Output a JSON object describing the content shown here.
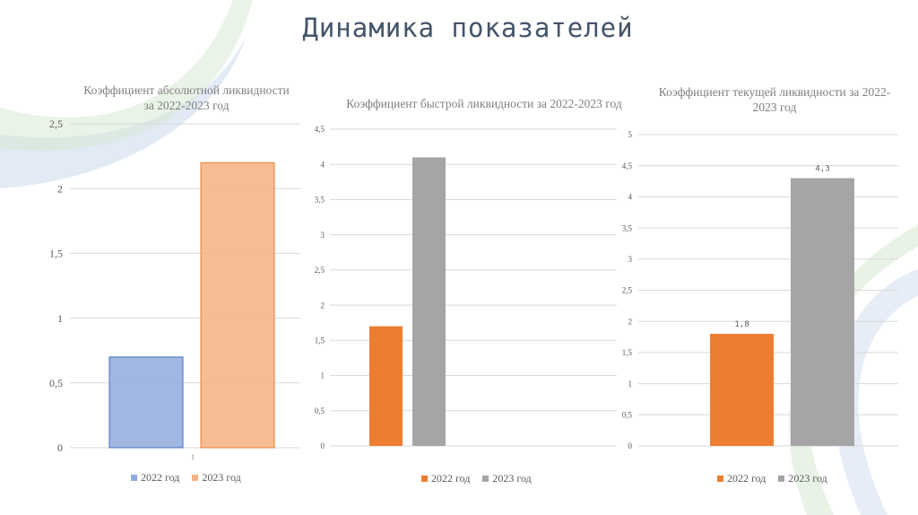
{
  "page": {
    "title": "Динамика показателей"
  },
  "chart_data": [
    {
      "type": "bar",
      "title": "Коэффициент абсолютной ликвидности за 2022-2023 год",
      "categories": [
        "1"
      ],
      "series": [
        {
          "name": "2022 год",
          "values": [
            0.7
          ],
          "color": "#8faadc"
        },
        {
          "name": "2023 год",
          "values": [
            2.2
          ],
          "color": "#f4b183"
        }
      ],
      "ylim": [
        0,
        2.5
      ],
      "yticks": [
        "0",
        "0,5",
        "1",
        "1,5",
        "2",
        "2,5"
      ],
      "legend": "bottom",
      "grid": true
    },
    {
      "type": "bar",
      "title": "Коэффициент быстрой ликвидности за 2022-2023 год",
      "categories": [
        ""
      ],
      "series": [
        {
          "name": "2022 год",
          "values": [
            1.7
          ],
          "color": "#ed7d31"
        },
        {
          "name": "2023 год",
          "values": [
            4.1
          ],
          "color": "#a5a5a5"
        }
      ],
      "ylim": [
        0,
        4.5
      ],
      "yticks": [
        "0",
        "0,5",
        "1",
        "1,5",
        "2",
        "2,5",
        "3",
        "3,5",
        "4",
        "4,5"
      ],
      "legend": "bottom",
      "grid": true
    },
    {
      "type": "bar",
      "title": "Коэффициент текущей ликвидности за 2022-2023 год",
      "categories": [
        ""
      ],
      "series": [
        {
          "name": "2022 год",
          "values": [
            1.8
          ],
          "color": "#ed7d31"
        },
        {
          "name": "2023 год",
          "values": [
            4.3
          ],
          "color": "#a5a5a5"
        }
      ],
      "data_labels": [
        "1,8",
        "4,3"
      ],
      "ylim": [
        0,
        5
      ],
      "yticks": [
        "0",
        "0,5",
        "1",
        "1,5",
        "2",
        "2,5",
        "3",
        "3,5",
        "4",
        "4,5",
        "5"
      ],
      "legend": "bottom",
      "grid": true
    }
  ]
}
